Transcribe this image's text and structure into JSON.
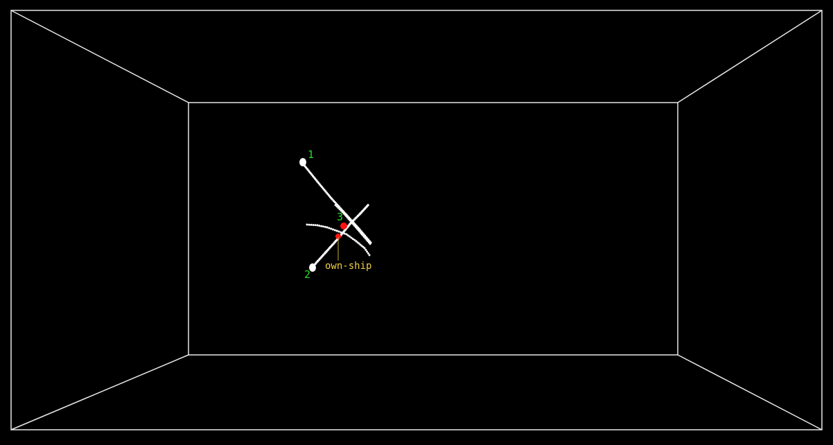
{
  "colors": {
    "background": "#000000",
    "frame": "#e8e8e8",
    "track": "#ffffff",
    "target_label": "#22dd22",
    "own_ship_label": "#eecc44",
    "own_ship_marker": "#ff1111"
  },
  "targets": [
    {
      "id": "1",
      "label": "1"
    },
    {
      "id": "2",
      "label": "2"
    },
    {
      "id": "3",
      "label": "3"
    }
  ],
  "own_ship": {
    "label": "own-ship"
  }
}
